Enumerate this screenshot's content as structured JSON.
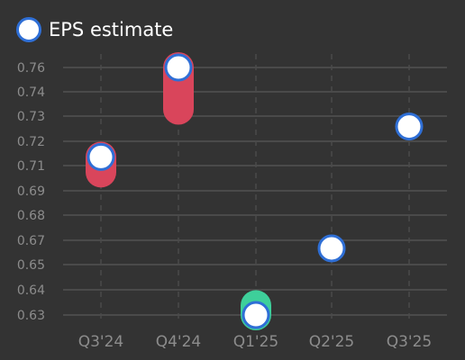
{
  "chart_data": {
    "type": "scatter",
    "legend": {
      "label": "EPS estimate",
      "placement": "top-left"
    },
    "categories": [
      "Q3'24",
      "Q4'24",
      "Q1'25",
      "Q2'25",
      "Q3'25"
    ],
    "y_ticks": [
      "0.76",
      "0.74",
      "0.73",
      "0.72",
      "0.71",
      "0.69",
      "0.68",
      "0.67",
      "0.65",
      "0.64",
      "0.63"
    ],
    "series": [
      {
        "name": "EPS estimate",
        "values": [
          0.713,
          0.76,
          0.63,
          0.665,
          0.729
        ]
      },
      {
        "values": [
          0.705,
          0.738,
          0.635,
          null,
          null
        ]
      }
    ],
    "grid": true,
    "colors": {
      "background": "#333333",
      "grid": "#4a4a4a",
      "estimate_fill": "#ffffff",
      "estimate_stroke": "#2f6fd6",
      "miss": "#d9455b",
      "beat": "#3ecf9a",
      "tick_text": "#8c8c8c"
    }
  }
}
